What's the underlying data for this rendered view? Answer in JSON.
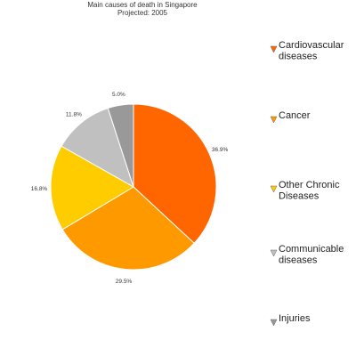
{
  "chart_data": {
    "type": "pie",
    "title": "Main causes of death in Singapore",
    "subtitle": "Projected: 2005",
    "legend_position": "right",
    "categories": [
      "Cardiovascular diseases",
      "Cancer",
      "Other Chronic Diseases",
      "Communicable diseases",
      "Injuries"
    ],
    "legend_lines": [
      [
        "Cardiovascular",
        "diseases"
      ],
      [
        "Cancer"
      ],
      [
        "Other Chronic",
        "Diseases"
      ],
      [
        "Communicable",
        "diseases"
      ],
      [
        "Injuries"
      ]
    ],
    "values": [
      36.9,
      29.5,
      16.8,
      11.8,
      5.0
    ],
    "value_labels": [
      "36.9%",
      "29.5%",
      "16.8%",
      "11.8%",
      "5.0%"
    ],
    "colors": [
      "#ff6600",
      "#ff9900",
      "#ffcc00",
      "#c0c0c0",
      "#999999"
    ]
  }
}
